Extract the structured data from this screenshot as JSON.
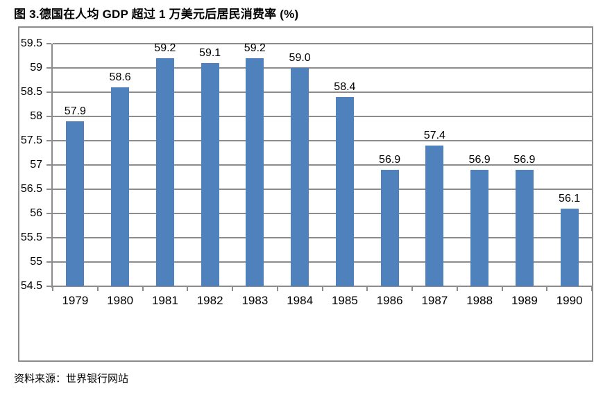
{
  "title": "图 3.德国在人均 GDP 超过 1 万美元后居民消费率 (%)",
  "source": "资料来源：世界银行网站",
  "chart_data": {
    "type": "bar",
    "title": "图 3.德国在人均 GDP 超过 1 万美元后居民消费率 (%)",
    "categories": [
      "1979",
      "1980",
      "1981",
      "1982",
      "1983",
      "1984",
      "1985",
      "1986",
      "1987",
      "1988",
      "1989",
      "1990"
    ],
    "values": [
      57.9,
      58.6,
      59.2,
      59.1,
      59.2,
      59.0,
      58.4,
      56.9,
      57.4,
      56.9,
      56.9,
      56.1
    ],
    "data_labels": [
      "57.9",
      "58.6",
      "59.2",
      "59.1",
      "59.2",
      "59.0",
      "58.4",
      "56.9",
      "57.4",
      "56.9",
      "56.9",
      "56.1"
    ],
    "xlabel": "",
    "ylabel": "",
    "ylim": [
      54.5,
      59.5
    ],
    "ytick_step": 0.5,
    "ytick_labels": [
      "59.5",
      "59",
      "58.5",
      "58",
      "57.5",
      "57",
      "56.5",
      "56",
      "55.5",
      "55",
      "54.5"
    ],
    "grid": true,
    "legend_position": "none",
    "bar_color": "#4F81BD",
    "gridline_color": "#8C8C8C",
    "text_color": "#000000",
    "source_note": "资料来源：世界银行网站"
  }
}
